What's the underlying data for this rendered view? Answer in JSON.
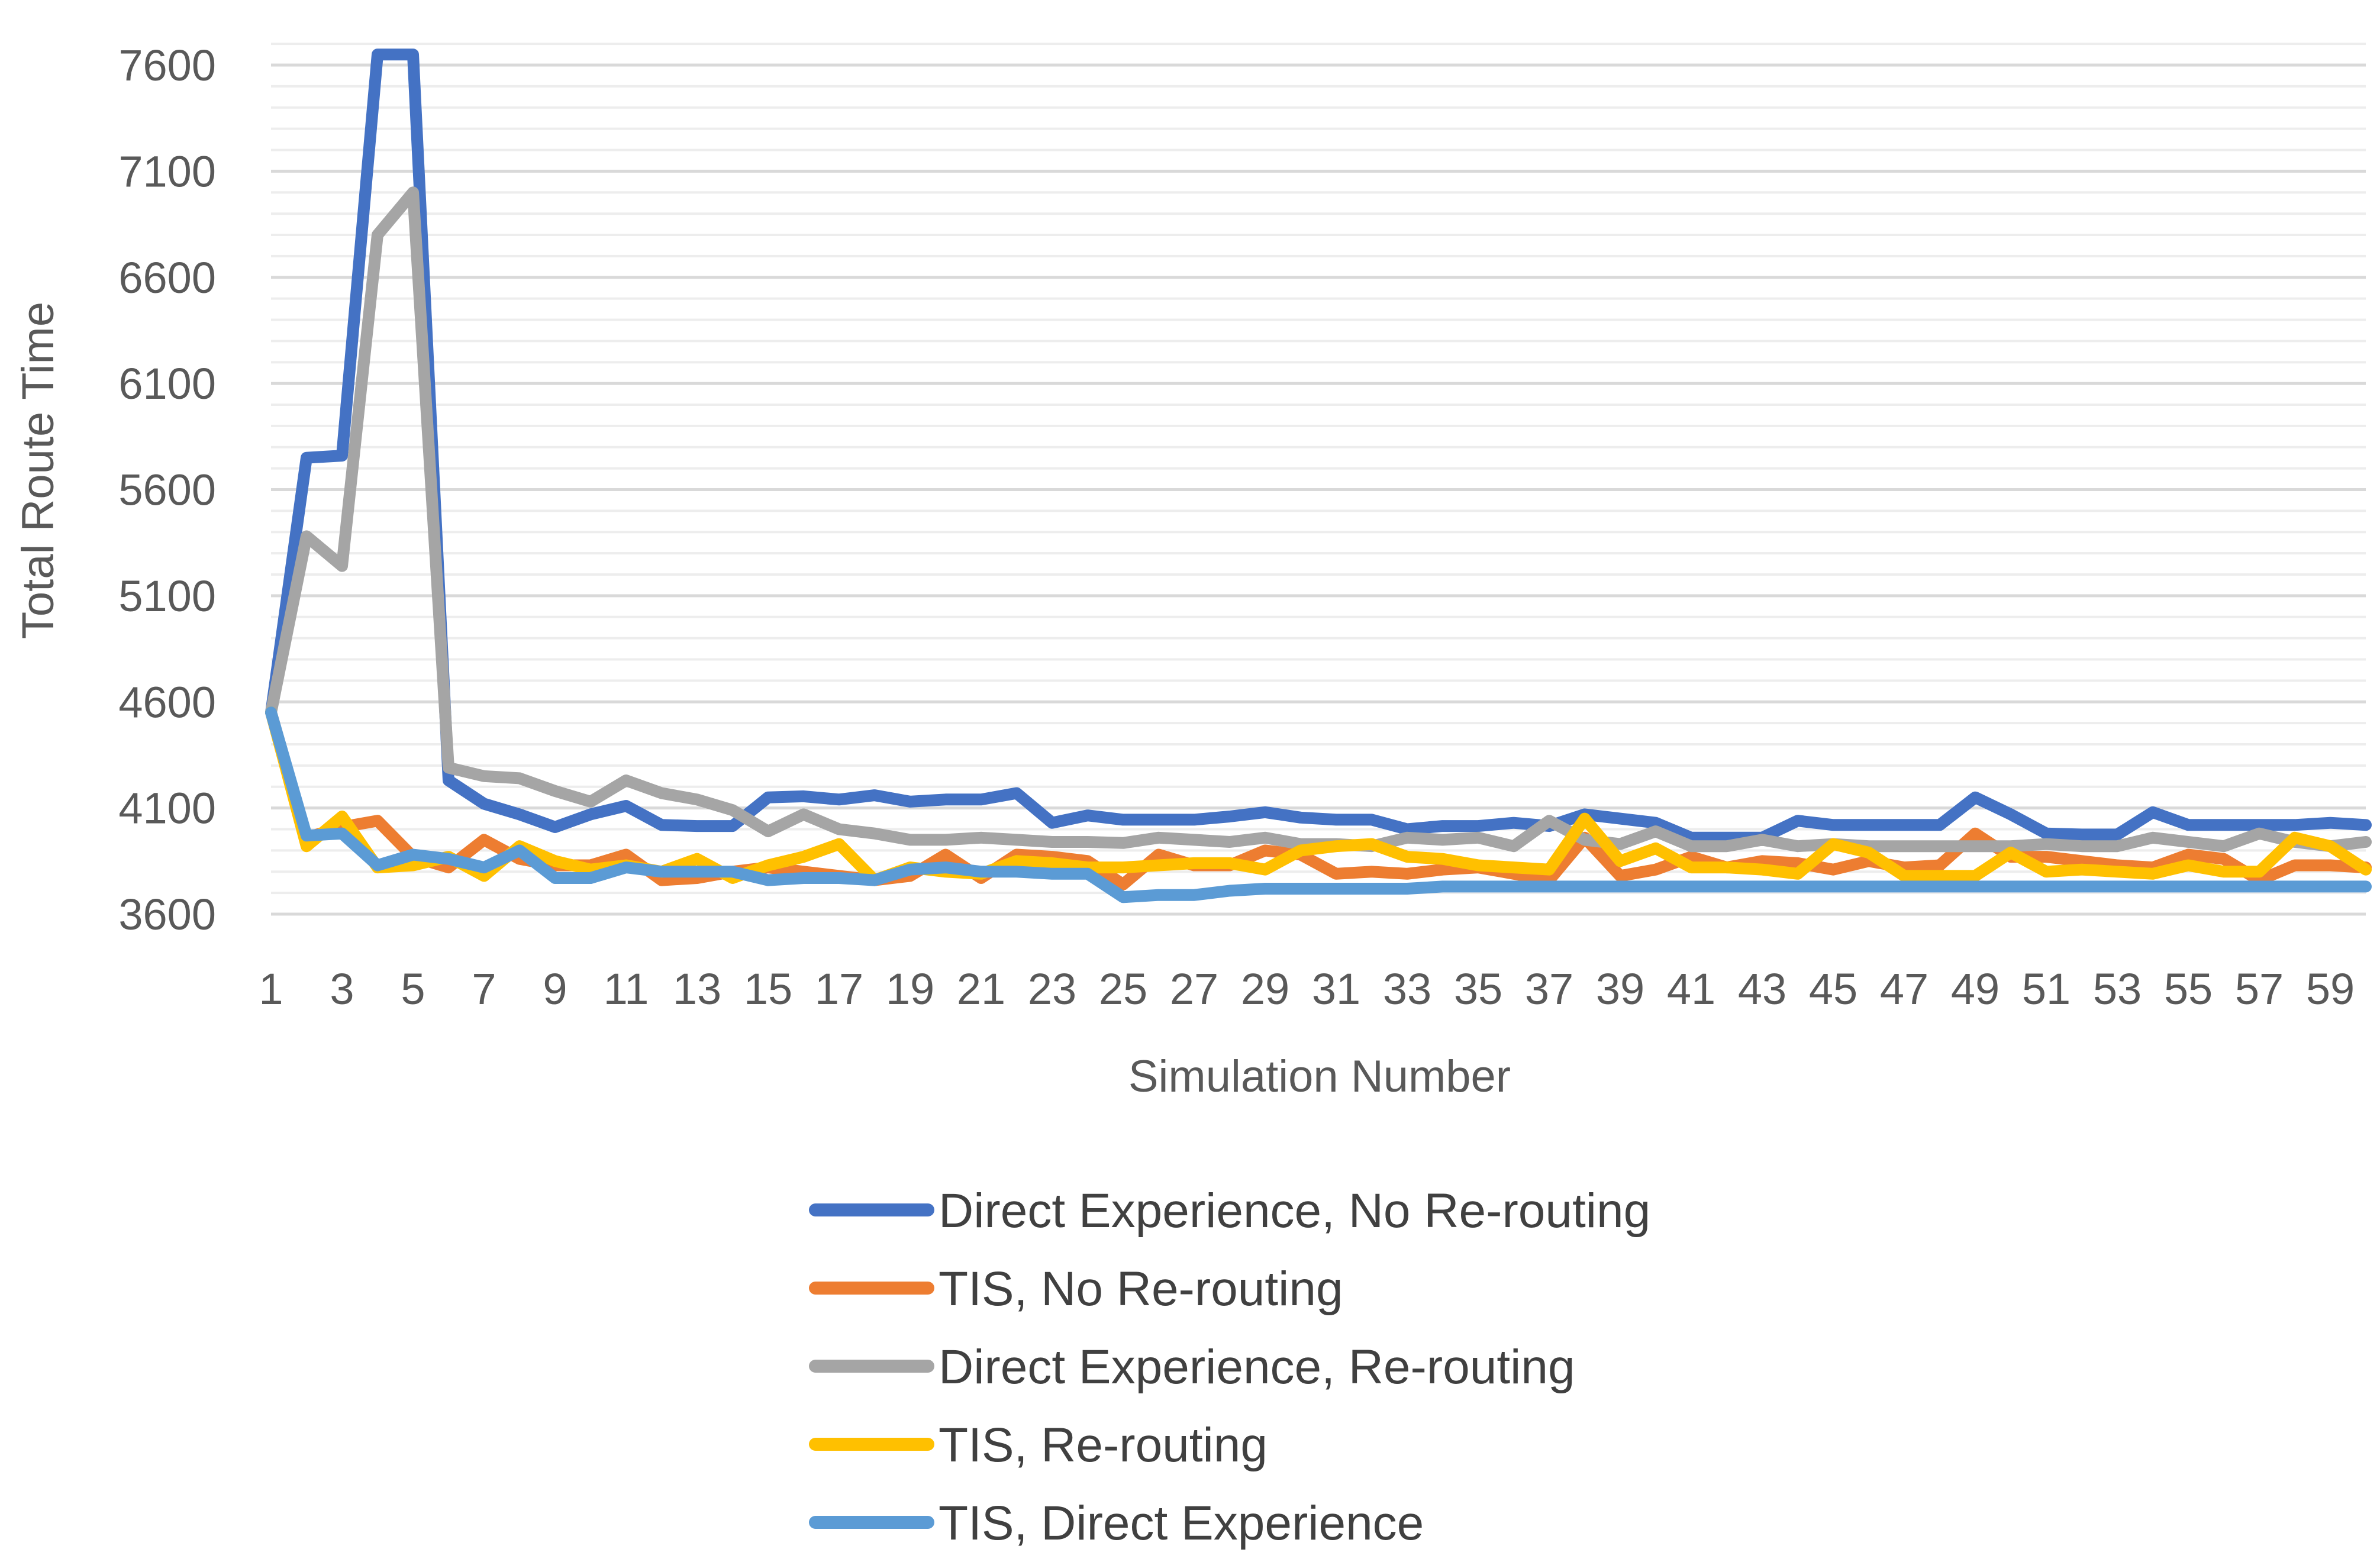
{
  "chart_data": {
    "type": "line",
    "title": "",
    "xlabel": "Simulation Number",
    "ylabel": "Total Route Time",
    "ylim": [
      3600,
      7700
    ],
    "yticks": [
      3600,
      4100,
      4600,
      5100,
      5600,
      6100,
      6600,
      7100,
      7600
    ],
    "xticks": [
      1,
      3,
      5,
      7,
      9,
      11,
      13,
      15,
      17,
      19,
      21,
      23,
      25,
      27,
      29,
      31,
      33,
      35,
      37,
      39,
      41,
      43,
      45,
      47,
      49,
      51,
      53,
      55,
      57,
      59
    ],
    "x": [
      1,
      2,
      3,
      4,
      5,
      6,
      7,
      8,
      9,
      10,
      11,
      12,
      13,
      14,
      15,
      16,
      17,
      18,
      19,
      20,
      21,
      22,
      23,
      24,
      25,
      26,
      27,
      28,
      29,
      30,
      31,
      32,
      33,
      34,
      35,
      36,
      37,
      38,
      39,
      40,
      41,
      42,
      43,
      44,
      45,
      46,
      47,
      48,
      49,
      50,
      51,
      52,
      53,
      54,
      55,
      56,
      57,
      58,
      59,
      60
    ],
    "grid": "horizontal",
    "legend_position": "bottom",
    "series": [
      {
        "name": "Direct Experience, No Re-routing",
        "color": "#4472c4",
        "values": [
          4550,
          5750,
          5760,
          7650,
          7650,
          4230,
          4120,
          4070,
          4010,
          4070,
          4110,
          4020,
          4015,
          4015,
          4150,
          4155,
          4140,
          4160,
          4130,
          4140,
          4140,
          4170,
          4030,
          4065,
          4045,
          4045,
          4045,
          4060,
          4080,
          4055,
          4045,
          4045,
          4000,
          4015,
          4015,
          4030,
          4015,
          4070,
          4050,
          4030,
          3960,
          3960,
          3960,
          4040,
          4020,
          4020,
          4020,
          4020,
          4150,
          4070,
          3980,
          3975,
          3975,
          4080,
          4020,
          4020,
          4020,
          4020,
          4030,
          4020
        ]
      },
      {
        "name": "TIS, No Re-routing",
        "color": "#ed7d31",
        "values": [
          4550,
          3960,
          4010,
          4040,
          3870,
          3820,
          3950,
          3860,
          3830,
          3830,
          3880,
          3760,
          3770,
          3800,
          3820,
          3800,
          3780,
          3760,
          3780,
          3880,
          3770,
          3880,
          3870,
          3850,
          3740,
          3880,
          3830,
          3830,
          3900,
          3880,
          3790,
          3800,
          3790,
          3810,
          3820,
          3790,
          3760,
          3960,
          3780,
          3810,
          3870,
          3820,
          3850,
          3840,
          3810,
          3850,
          3820,
          3830,
          3980,
          3870,
          3870,
          3850,
          3830,
          3820,
          3880,
          3860,
          3760,
          3830,
          3830,
          3820
        ]
      },
      {
        "name": "Direct Experience, Re-routing",
        "color": "#a5a5a5",
        "values": [
          4550,
          5380,
          5240,
          6800,
          7000,
          4290,
          4250,
          4240,
          4180,
          4130,
          4230,
          4170,
          4140,
          4090,
          3990,
          4070,
          4000,
          3980,
          3950,
          3950,
          3960,
          3950,
          3940,
          3940,
          3935,
          3960,
          3950,
          3940,
          3960,
          3930,
          3930,
          3920,
          3960,
          3950,
          3960,
          3920,
          4040,
          3950,
          3930,
          3990,
          3920,
          3920,
          3950,
          3920,
          3930,
          3920,
          3920,
          3920,
          3920,
          3920,
          3930,
          3920,
          3920,
          3960,
          3940,
          3920,
          3980,
          3940,
          3920,
          3940
        ]
      },
      {
        "name": "TIS, Re-routing",
        "color": "#ffc000",
        "values": [
          4550,
          3920,
          4060,
          3820,
          3830,
          3870,
          3780,
          3920,
          3850,
          3810,
          3830,
          3800,
          3860,
          3770,
          3830,
          3870,
          3930,
          3760,
          3820,
          3800,
          3790,
          3850,
          3840,
          3820,
          3820,
          3830,
          3840,
          3840,
          3810,
          3900,
          3920,
          3930,
          3870,
          3860,
          3830,
          3820,
          3810,
          4050,
          3850,
          3910,
          3820,
          3820,
          3810,
          3790,
          3930,
          3890,
          3780,
          3780,
          3780,
          3890,
          3800,
          3810,
          3800,
          3790,
          3830,
          3800,
          3800,
          3960,
          3920,
          3810
        ]
      },
      {
        "name": "TIS, Direct Experience",
        "color": "#5b9bd5",
        "values": [
          4550,
          3970,
          3980,
          3830,
          3880,
          3860,
          3820,
          3900,
          3770,
          3770,
          3820,
          3800,
          3800,
          3800,
          3760,
          3770,
          3770,
          3760,
          3810,
          3820,
          3800,
          3800,
          3790,
          3790,
          3680,
          3690,
          3690,
          3710,
          3720,
          3720,
          3720,
          3720,
          3720,
          3730,
          3730,
          3730,
          3730,
          3730,
          3730,
          3730,
          3730,
          3730,
          3730,
          3730,
          3730,
          3730,
          3730,
          3730,
          3730,
          3730,
          3730,
          3730,
          3730,
          3730,
          3730,
          3730,
          3730,
          3730,
          3730,
          3730
        ]
      }
    ]
  }
}
